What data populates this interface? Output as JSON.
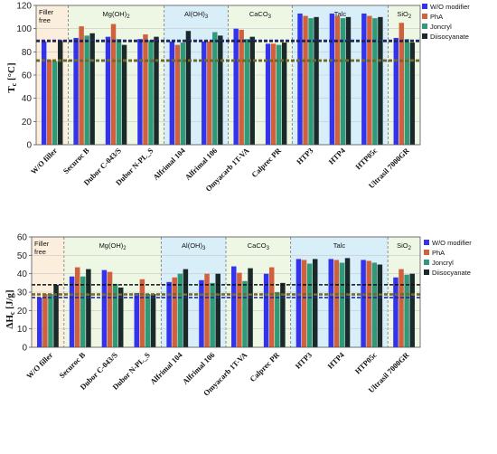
{
  "legend": [
    {
      "name": "W/O modifier",
      "color": "#3333ee"
    },
    {
      "name": "PhA",
      "color": "#d1603d"
    },
    {
      "name": "Joncryl",
      "color": "#2e9a78"
    },
    {
      "name": "Diisocyanate",
      "color": "#1a2a2a"
    }
  ],
  "groups": [
    {
      "label": "Filler free",
      "color": "#fbeedd"
    },
    {
      "label": "Mg(OH)2",
      "color": "#eef6e4"
    },
    {
      "label": "Al(OH)3",
      "color": "#d8effa"
    },
    {
      "label": "CaCO3",
      "color": "#eef6e4"
    },
    {
      "label": "Talc",
      "color": "#d8effa"
    },
    {
      "label": "SiO2",
      "color": "#eef6e4"
    }
  ],
  "chart_data": [
    {
      "type": "bar",
      "ylabel": "Tc [°C]",
      "ylim": [
        0,
        120
      ],
      "yticks": [
        0,
        20,
        40,
        60,
        80,
        100,
        120
      ],
      "categories": [
        "W/O filler",
        "Securoc B",
        "Dubor C-043/S",
        "Dubor N-PL_S",
        "Alfrimal 104",
        "Alfrimal 106",
        "Omyacarb 1T-VA",
        "Calprec PR",
        "HTP3",
        "HTP4",
        "HTP05c",
        "Ultrasil 7000GR"
      ],
      "series": [
        {
          "name": "W/O modifier",
          "values": [
            89,
            92,
            93,
            91,
            89,
            89,
            100,
            87,
            113,
            113,
            113,
            92
          ]
        },
        {
          "name": "PhA",
          "values": [
            73,
            102,
            104,
            95,
            86,
            89,
            99,
            87,
            111,
            111,
            111,
            105
          ]
        },
        {
          "name": "Joncryl",
          "values": [
            72,
            94,
            91,
            90,
            88,
            97,
            91,
            86,
            109,
            109,
            109,
            91
          ]
        },
        {
          "name": "Diisocyanate",
          "values": [
            90,
            96,
            86,
            93,
            98,
            94,
            93,
            88,
            110,
            110,
            110,
            88
          ]
        }
      ],
      "reference_lines": [
        {
          "value": 90,
          "color": "#1a2aa0"
        },
        {
          "value": 89,
          "color": "#222222"
        },
        {
          "value": 73,
          "color": "#8a6a2a"
        },
        {
          "value": 72,
          "color": "#556b2f"
        }
      ],
      "groups": [
        {
          "label": "Filler free",
          "categories": [
            0
          ]
        },
        {
          "label": "Mg(OH)2",
          "categories": [
            1,
            2,
            3
          ]
        },
        {
          "label": "Al(OH)3",
          "categories": [
            4,
            5
          ]
        },
        {
          "label": "CaCO3",
          "categories": [
            6,
            7
          ]
        },
        {
          "label": "Talc",
          "categories": [
            8,
            9,
            10
          ]
        },
        {
          "label": "SiO2",
          "categories": [
            11
          ]
        }
      ]
    },
    {
      "type": "bar",
      "ylabel": "ΔHc [J/g]",
      "ylim": [
        0,
        60
      ],
      "yticks": [
        0,
        10,
        20,
        30,
        40,
        50,
        60
      ],
      "categories": [
        "W/O filler",
        "Securoc B",
        "Dubor C-043/S",
        "Dubor N-PL_S",
        "Alfrimal 104",
        "Alfrimal 106",
        "Omyacarb 1T-VA",
        "Calprec PR",
        "HTP3",
        "HTP4",
        "HTP05c",
        "Ultrasil 7000GR"
      ],
      "series": [
        {
          "name": "W/O modifier",
          "values": [
            27,
            38.5,
            42,
            29.5,
            35.5,
            36.5,
            44,
            40,
            48,
            48,
            47.5,
            38
          ]
        },
        {
          "name": "PhA",
          "values": [
            29,
            43.5,
            41,
            37,
            38,
            40,
            40.5,
            43.5,
            47.5,
            47.5,
            47,
            42.5
          ]
        },
        {
          "name": "Joncryl",
          "values": [
            29,
            38.5,
            34.5,
            29,
            40,
            35,
            36,
            30,
            45.5,
            46,
            46,
            39.5
          ]
        },
        {
          "name": "Diisocyanate",
          "values": [
            34,
            42.5,
            32.5,
            29,
            42.5,
            40,
            43,
            35,
            48,
            48.5,
            45,
            40
          ]
        }
      ],
      "reference_lines": [
        {
          "value": 34,
          "color": "#111111"
        },
        {
          "value": 29,
          "color": "#556b2f"
        },
        {
          "value": 28.5,
          "color": "#8a6a2a"
        },
        {
          "value": 27,
          "color": "#1a2aa0"
        }
      ],
      "groups": [
        {
          "label": "Filler free",
          "categories": [
            0
          ]
        },
        {
          "label": "Mg(OH)2",
          "categories": [
            1,
            2,
            3
          ]
        },
        {
          "label": "Al(OH)3",
          "categories": [
            4,
            5
          ]
        },
        {
          "label": "CaCO3",
          "categories": [
            6,
            7
          ]
        },
        {
          "label": "Talc",
          "categories": [
            8,
            9,
            10
          ]
        },
        {
          "label": "SiO2",
          "categories": [
            11
          ]
        }
      ]
    }
  ]
}
